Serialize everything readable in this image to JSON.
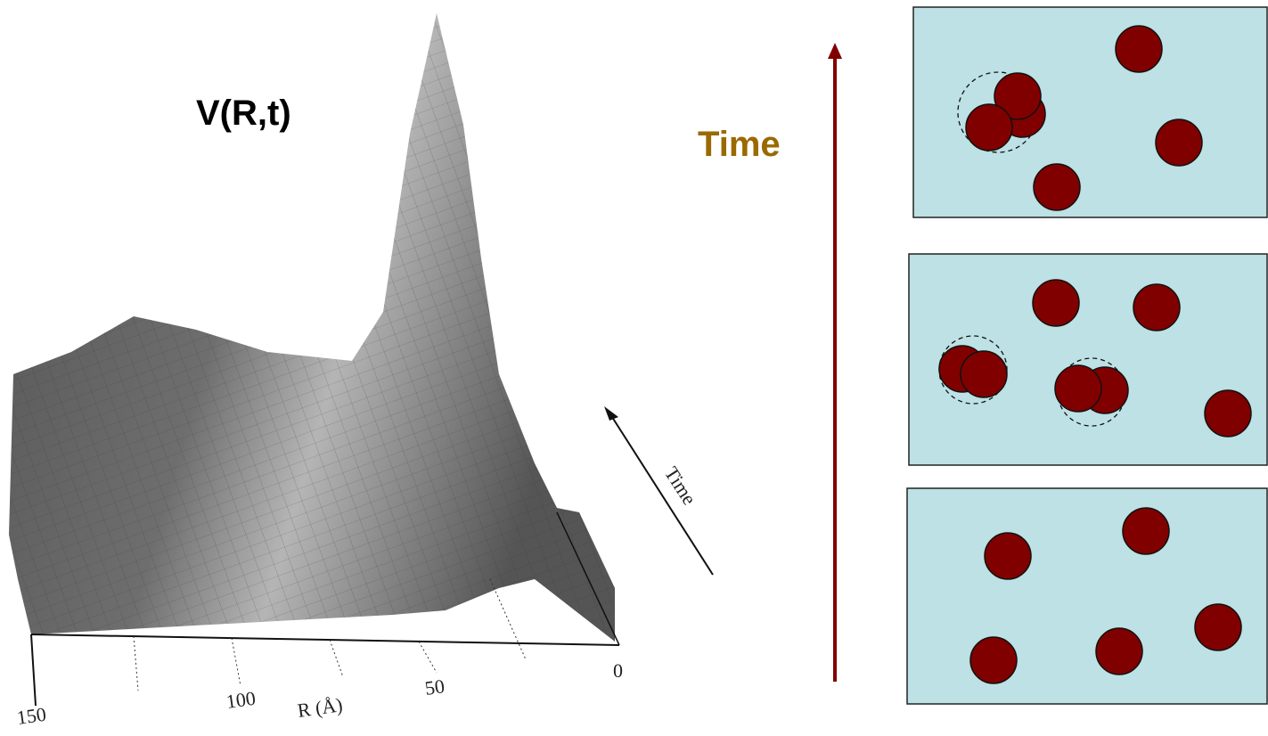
{
  "plot": {
    "title": "V(R,t)",
    "time_label": "Time",
    "x_axis_label": "R (Å)",
    "x_ticks": [
      "150",
      "100",
      "50",
      "0"
    ]
  },
  "timeline": {
    "label": "Time"
  }
}
